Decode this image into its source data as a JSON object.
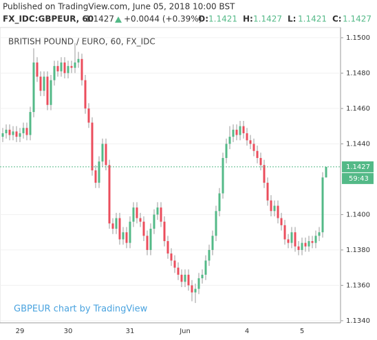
{
  "header": {
    "published": "Published on TradingView.com, June 05, 2018 10:00 BST",
    "symbol": "FX_IDC:GBPEUR, 60",
    "last": "1.1427",
    "change": "+0.0044 (+0.39%)",
    "ohlc": [
      {
        "label": "O:",
        "value": "1.1421"
      },
      {
        "label": "H:",
        "value": "1.1427"
      },
      {
        "label": "L:",
        "value": "1.1421"
      },
      {
        "label": "C:",
        "value": "1.1427"
      }
    ]
  },
  "chart_data": {
    "type": "candlestick",
    "title": "BRITISH POUND / EURO, 60, FX_IDC",
    "watermark": "GBPEUR chart by TradingView",
    "up_color": "#53b987",
    "down_color": "#eb4d5c",
    "categories": [
      null,
      null,
      null,
      null,
      null,
      "29",
      null,
      null,
      null,
      null,
      null,
      null,
      null,
      null,
      null,
      null,
      null,
      null,
      null,
      "30",
      null,
      null,
      null,
      null,
      null,
      null,
      null,
      null,
      null,
      null,
      null,
      null,
      null,
      null,
      null,
      null,
      null,
      "31",
      null,
      null,
      null,
      null,
      null,
      null,
      null,
      null,
      null,
      null,
      null,
      null,
      null,
      null,
      null,
      "Jun",
      null,
      null,
      null,
      null,
      null,
      null,
      null,
      null,
      null,
      null,
      null,
      null,
      null,
      null,
      null,
      null,
      null,
      "4",
      null,
      null,
      null,
      null,
      null,
      null,
      null,
      null,
      null,
      null,
      null,
      null,
      null,
      null,
      null,
      "5",
      null,
      null,
      null,
      null,
      null,
      null,
      null
    ],
    "open": [
      1.1444,
      1.1446,
      1.1448,
      1.1445,
      1.1447,
      1.1444,
      1.1446,
      1.1449,
      1.1445,
      1.1458,
      1.1486,
      1.1478,
      1.147,
      1.1478,
      1.1462,
      1.1476,
      1.1484,
      1.1481,
      1.1486,
      1.148,
      1.1484,
      1.1483,
      1.1486,
      1.1488,
      1.1476,
      1.146,
      1.1452,
      1.1425,
      1.1418,
      1.143,
      1.144,
      1.1428,
      1.1395,
      1.1392,
      1.1398,
      1.1386,
      1.139,
      1.1384,
      1.1396,
      1.1404,
      1.1398,
      1.1396,
      1.1388,
      1.138,
      1.1392,
      1.14,
      1.1404,
      1.1396,
      1.1385,
      1.1378,
      1.1374,
      1.137,
      1.1366,
      1.1362,
      1.1366,
      1.136,
      1.1356,
      1.1358,
      1.1364,
      1.1366,
      1.1374,
      1.138,
      1.1388,
      1.1402,
      1.1412,
      1.1432,
      1.144,
      1.1444,
      1.1448,
      1.1445,
      1.145,
      1.1446,
      1.1442,
      1.144,
      1.1436,
      1.1432,
      1.1428,
      1.1418,
      1.1408,
      1.1402,
      1.1405,
      1.1398,
      1.1394,
      1.1386,
      1.1384,
      1.139,
      1.1382,
      1.138,
      1.1384,
      1.1382,
      1.1385,
      1.1384,
      1.1388,
      1.139,
      1.1421
    ],
    "high": [
      1.1449,
      1.1451,
      1.1451,
      1.145,
      1.145,
      1.1449,
      1.1452,
      1.1452,
      1.1461,
      1.1494,
      1.1489,
      1.1481,
      1.1481,
      1.1481,
      1.1479,
      1.1487,
      1.1487,
      1.1489,
      1.1489,
      1.1487,
      1.1487,
      1.1497,
      1.1492,
      1.1491,
      1.1479,
      1.1463,
      1.1455,
      1.1428,
      1.1433,
      1.1443,
      1.1443,
      1.1431,
      1.1398,
      1.1401,
      1.1401,
      1.1393,
      1.1393,
      1.1399,
      1.1407,
      1.1407,
      1.1401,
      1.1399,
      1.1391,
      1.1395,
      1.1403,
      1.1407,
      1.1407,
      1.1399,
      1.1388,
      1.1381,
      1.1377,
      1.1373,
      1.1369,
      1.1369,
      1.1369,
      1.1363,
      1.1361,
      1.1367,
      1.1369,
      1.1377,
      1.1383,
      1.1391,
      1.1405,
      1.1415,
      1.1435,
      1.1443,
      1.145,
      1.1451,
      1.1451,
      1.1453,
      1.1453,
      1.1449,
      1.1445,
      1.1443,
      1.1439,
      1.1435,
      1.1431,
      1.1421,
      1.1411,
      1.1408,
      1.1408,
      1.1401,
      1.1397,
      1.1389,
      1.1393,
      1.1393,
      1.1385,
      1.1387,
      1.1387,
      1.1388,
      1.1388,
      1.1391,
      1.1393,
      1.1424,
      1.1427
    ],
    "low": [
      1.1441,
      1.1443,
      1.1442,
      1.1442,
      1.1441,
      1.1441,
      1.1443,
      1.1442,
      1.1442,
      1.1455,
      1.1475,
      1.1467,
      1.1467,
      1.1459,
      1.1459,
      1.1473,
      1.1478,
      1.1478,
      1.1477,
      1.1477,
      1.148,
      1.148,
      1.1483,
      1.1473,
      1.1457,
      1.1449,
      1.1422,
      1.1415,
      1.1415,
      1.1427,
      1.1425,
      1.1392,
      1.1389,
      1.1389,
      1.1383,
      1.1383,
      1.1381,
      1.1381,
      1.1393,
      1.1395,
      1.1393,
      1.1385,
      1.1377,
      1.1377,
      1.1389,
      1.1397,
      1.1393,
      1.1382,
      1.1375,
      1.1371,
      1.1367,
      1.1363,
      1.1359,
      1.1359,
      1.1357,
      1.1351,
      1.135,
      1.1355,
      1.1361,
      1.1363,
      1.1371,
      1.1377,
      1.1385,
      1.1399,
      1.1409,
      1.1429,
      1.1437,
      1.1441,
      1.1442,
      1.1442,
      1.1443,
      1.1439,
      1.1437,
      1.1433,
      1.1429,
      1.1425,
      1.1415,
      1.1405,
      1.1399,
      1.1399,
      1.1395,
      1.1391,
      1.1383,
      1.1381,
      1.1381,
      1.1379,
      1.1377,
      1.1377,
      1.1379,
      1.1379,
      1.1381,
      1.1381,
      1.1385,
      1.1387,
      1.1421
    ],
    "close": [
      1.1446,
      1.1448,
      1.1445,
      1.1447,
      1.1444,
      1.1446,
      1.1449,
      1.1445,
      1.1458,
      1.1486,
      1.1478,
      1.147,
      1.1478,
      1.1462,
      1.1476,
      1.1484,
      1.1481,
      1.1486,
      1.148,
      1.1484,
      1.1483,
      1.1486,
      1.1488,
      1.1476,
      1.146,
      1.1452,
      1.1425,
      1.1418,
      1.143,
      1.144,
      1.1428,
      1.1395,
      1.1392,
      1.1398,
      1.1386,
      1.139,
      1.1384,
      1.1396,
      1.1404,
      1.1398,
      1.1396,
      1.1388,
      1.138,
      1.1392,
      1.14,
      1.1404,
      1.1396,
      1.1385,
      1.1378,
      1.1374,
      1.137,
      1.1366,
      1.1362,
      1.1366,
      1.136,
      1.1356,
      1.1358,
      1.1364,
      1.1366,
      1.1374,
      1.138,
      1.1388,
      1.1402,
      1.1412,
      1.1432,
      1.144,
      1.1444,
      1.1448,
      1.1445,
      1.145,
      1.1446,
      1.1442,
      1.144,
      1.1436,
      1.1432,
      1.1428,
      1.1418,
      1.1408,
      1.1402,
      1.1405,
      1.1398,
      1.1394,
      1.1386,
      1.1384,
      1.139,
      1.1382,
      1.138,
      1.1384,
      1.1382,
      1.1385,
      1.1384,
      1.1388,
      1.139,
      1.1421,
      1.1427
    ],
    "ylim": [
      1.13388,
      1.15058
    ],
    "yticks": [
      {
        "value": 1.134,
        "label": "1.1340"
      },
      {
        "value": 1.136,
        "label": "1.1360"
      },
      {
        "value": 1.138,
        "label": "1.1380"
      },
      {
        "value": 1.14,
        "label": "1.1400"
      },
      {
        "value": 1.144,
        "label": "1.1440"
      },
      {
        "value": 1.146,
        "label": "1.1460"
      },
      {
        "value": 1.148,
        "label": "1.1480"
      },
      {
        "value": 1.15,
        "label": "1.1500"
      }
    ],
    "grid": true,
    "price_line": {
      "value": 1.1427,
      "label": "1.1427"
    },
    "countdown": "59:43"
  }
}
